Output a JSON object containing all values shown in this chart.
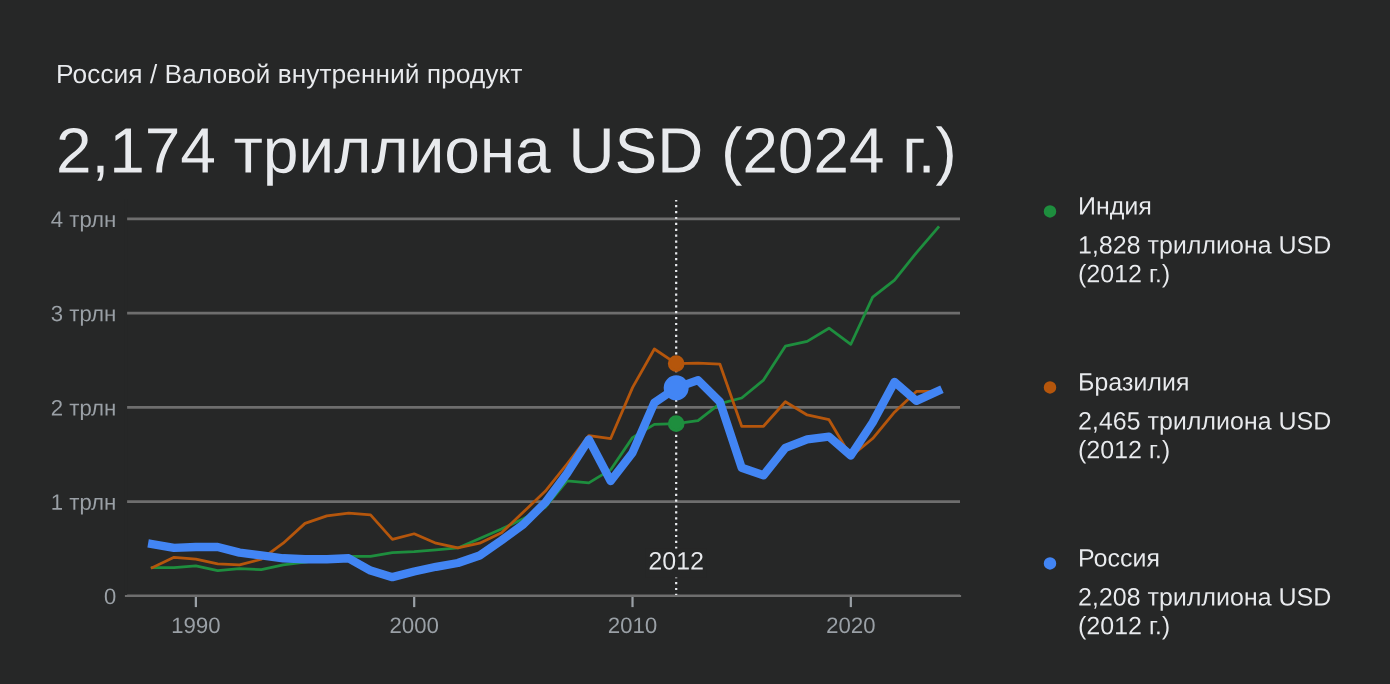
{
  "chart_data": {
    "type": "line",
    "subtitle": "Россия / Валовой внутренний продукт",
    "title": "2,174 триллиона USD (2024 г.)",
    "x": [
      1988,
      1989,
      1990,
      1991,
      1992,
      1993,
      1994,
      1995,
      1996,
      1997,
      1998,
      1999,
      2000,
      2001,
      2002,
      2003,
      2004,
      2005,
      2006,
      2007,
      2008,
      2009,
      2010,
      2011,
      2012,
      2013,
      2014,
      2015,
      2016,
      2017,
      2018,
      2019,
      2020,
      2021,
      2022,
      2023,
      2024
    ],
    "series": [
      {
        "name": "Индия",
        "color": "#1e8e3e",
        "values": [
          0.3,
          0.3,
          0.32,
          0.27,
          0.29,
          0.28,
          0.33,
          0.36,
          0.39,
          0.42,
          0.42,
          0.46,
          0.47,
          0.49,
          0.51,
          0.61,
          0.71,
          0.82,
          0.94,
          1.22,
          1.2,
          1.34,
          1.68,
          1.82,
          1.828,
          1.86,
          2.04,
          2.1,
          2.29,
          2.65,
          2.7,
          2.84,
          2.67,
          3.17,
          3.35,
          3.64,
          3.91
        ]
      },
      {
        "name": "Бразилия",
        "color": "#b5560c",
        "values": [
          0.3,
          0.41,
          0.39,
          0.34,
          0.33,
          0.39,
          0.56,
          0.77,
          0.85,
          0.88,
          0.86,
          0.6,
          0.66,
          0.56,
          0.51,
          0.56,
          0.67,
          0.89,
          1.11,
          1.4,
          1.7,
          1.67,
          2.21,
          2.62,
          2.465,
          2.47,
          2.46,
          1.8,
          1.8,
          2.06,
          1.92,
          1.87,
          1.48,
          1.67,
          1.95,
          2.17,
          2.17
        ]
      },
      {
        "name": "Россия",
        "color": "#4285f4",
        "values": [
          0.55,
          0.51,
          0.52,
          0.52,
          0.46,
          0.43,
          0.4,
          0.39,
          0.39,
          0.4,
          0.27,
          0.2,
          0.26,
          0.31,
          0.35,
          0.43,
          0.59,
          0.76,
          0.99,
          1.3,
          1.66,
          1.22,
          1.52,
          2.05,
          2.208,
          2.29,
          2.06,
          1.36,
          1.28,
          1.57,
          1.66,
          1.69,
          1.49,
          1.84,
          2.27,
          2.07,
          2.174
        ]
      }
    ],
    "annotations": [
      "1,828 триллиона USD (2012 г.)",
      "2,465 триллиона USD (2012 г.)",
      "2,208 триллиона USD (2012 г.)"
    ],
    "ref_lines": [
      {
        "axis": "x",
        "value": 2012,
        "label": "2012",
        "line_style": "dotted",
        "color": "#e8eaed"
      }
    ],
    "xlim": [
      1986.8,
      2025
    ],
    "xticks": [
      1990,
      2000,
      2010,
      2020
    ],
    "ylim": [
      0,
      4.2
    ],
    "yticks": [
      0,
      {
        "value": 1,
        "label": "1 трлн"
      },
      {
        "value": 2,
        "label": "2 трлн"
      },
      {
        "value": 3,
        "label": "3 трлн"
      },
      {
        "value": 4,
        "label": "4 трлн"
      }
    ],
    "grid": "y",
    "legend": "right",
    "marker": "none",
    "line_style": "solid"
  }
}
